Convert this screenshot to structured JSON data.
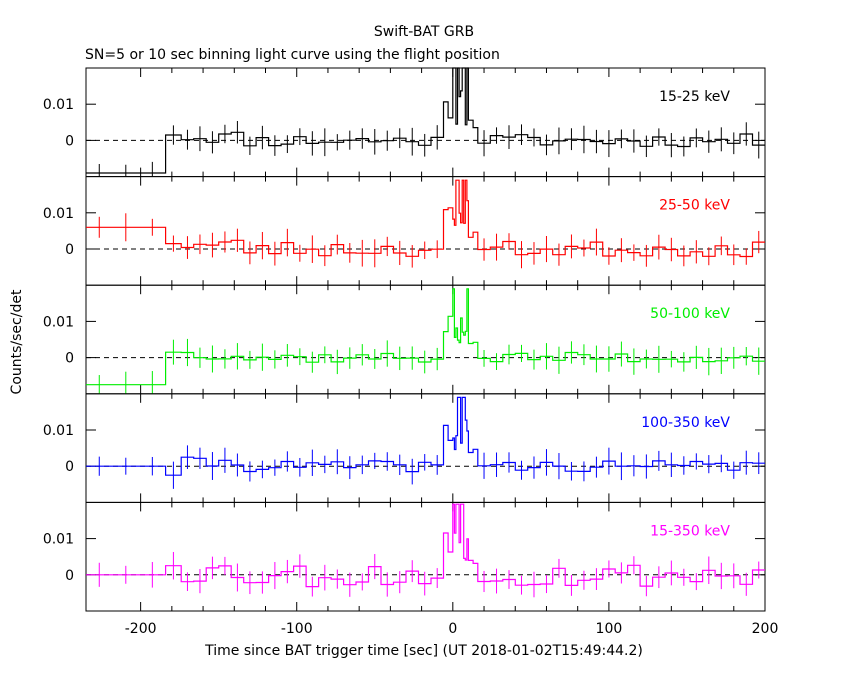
{
  "figure": {
    "title": "Swift-BAT GRB",
    "subtitle": "SN=5 or 10 sec binning light curve using the flight position",
    "ylabel": "Counts/sec/det",
    "xlabel": "Time since BAT trigger time [sec] (UT 2018-01-02T15:49:44.2)"
  },
  "chart_data": {
    "type": "line",
    "xlim": [
      -235,
      200
    ],
    "ylim": [
      -0.01,
      0.02
    ],
    "x_ticks": [
      -200,
      -100,
      0,
      100,
      200
    ],
    "y_ticks": [
      0,
      0.01
    ],
    "y_tick_labels": [
      "0",
      "0.01"
    ],
    "x_tick_labels": [
      "-200",
      "-100",
      "0",
      "100",
      "200"
    ],
    "series": [
      {
        "name": "15-25 keV",
        "color": "#000000",
        "amp": 1.0,
        "pre": -0.009,
        "early": 0.002,
        "peak": 0.02,
        "jitter": 0.0018,
        "seed": 11
      },
      {
        "name": "25-50 keV",
        "color": "#ff0000",
        "amp": 1.0,
        "pre": 0.006,
        "early": 0.002,
        "peak": 0.019,
        "jitter": 0.0022,
        "seed": 23
      },
      {
        "name": "50-100 keV",
        "color": "#00ee00",
        "amp": 1.0,
        "pre": -0.0075,
        "early": 0.002,
        "peak": 0.019,
        "jitter": 0.0015,
        "seed": 37
      },
      {
        "name": "100-350 keV",
        "color": "#0000ff",
        "amp": 1.0,
        "pre": 0.0,
        "early": -0.002,
        "peak": 0.019,
        "jitter": 0.0015,
        "seed": 41
      },
      {
        "name": "15-350 keV",
        "color": "#ff00ff",
        "amp": 1.0,
        "pre": 0.0,
        "early": 0.003,
        "peak": 0.0195,
        "jitter": 0.0035,
        "seed": 53
      }
    ]
  }
}
